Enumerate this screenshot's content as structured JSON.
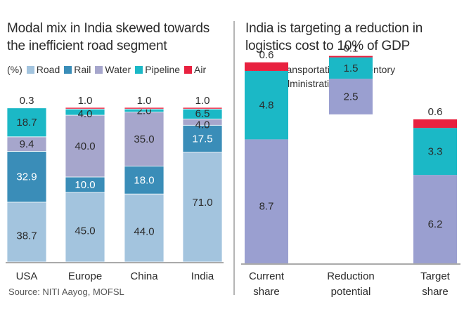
{
  "chart_data": [
    {
      "type": "bar",
      "stacked": true,
      "title": "Modal mix in India skewed towards the inefficient road segment",
      "unit_label": "(%)",
      "categories": [
        "USA",
        "Europe",
        "China",
        "India"
      ],
      "series": [
        {
          "name": "Road",
          "color": "#a3c4de",
          "values": [
            38.7,
            45.0,
            44.0,
            71.0
          ]
        },
        {
          "name": "Rail",
          "color": "#3a8db8",
          "values": [
            32.9,
            10.0,
            18.0,
            17.5
          ]
        },
        {
          "name": "Water",
          "color": "#a6a6cc",
          "values": [
            9.4,
            40.0,
            35.0,
            4.0
          ]
        },
        {
          "name": "Pipeline",
          "color": "#1bb8c6",
          "values": [
            18.7,
            4.0,
            2.0,
            6.5
          ]
        },
        {
          "name": "Air",
          "color": "#e8213f",
          "values": [
            0.3,
            1.0,
            1.0,
            1.0
          ]
        }
      ],
      "ylim": [
        0,
        100
      ],
      "grid": false,
      "legend_position": "top"
    },
    {
      "type": "bar",
      "stacked": true,
      "waterfall": true,
      "title": "India is targeting a reduction in logistics cost to 10% of GDP",
      "unit_label": "(%)",
      "categories": [
        "Current share",
        "Reduction potential",
        "Target share"
      ],
      "series": [
        {
          "name": "Transportation",
          "color": "#9a9fd0",
          "values": [
            8.7,
            2.5,
            6.2
          ]
        },
        {
          "name": "Inventory",
          "color": "#1bb8c6",
          "values": [
            4.8,
            1.5,
            3.3
          ]
        },
        {
          "name": "Administration",
          "color": "#e8213f",
          "values": [
            0.6,
            0.1,
            0.6
          ]
        }
      ],
      "grid": false,
      "legend_position": "top"
    }
  ],
  "left": {
    "title_line1": "Modal mix in India skewed towards",
    "title_line2": "the inefficient road segment",
    "unit": "(%)",
    "legend": [
      "Road",
      "Rail",
      "Water",
      "Pipeline",
      "Air"
    ]
  },
  "right": {
    "title_line1": "India is targeting a reduction in",
    "title_line2": "logistics cost to 10% of GDP",
    "unit": "(%)",
    "legend": [
      "Transportation",
      "Inventory",
      "Administration"
    ]
  },
  "source": "Source: NITI Aayog, MOFSL"
}
